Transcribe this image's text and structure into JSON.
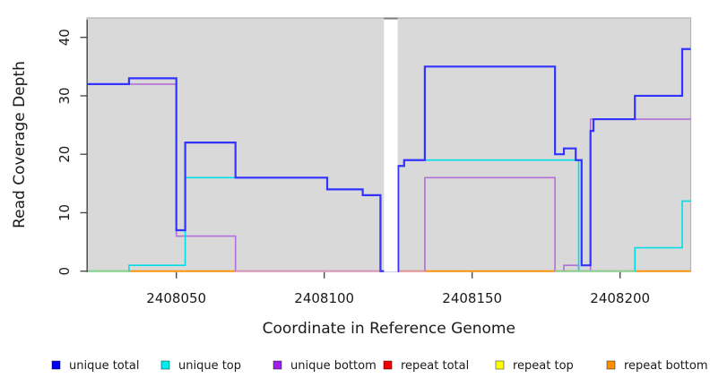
{
  "chart_data": {
    "type": "step-line",
    "title": "",
    "xlabel": "Coordinate in Reference Genome",
    "ylabel": "Read Coverage Depth",
    "xlim": [
      2408020,
      2408224
    ],
    "ylim": [
      0,
      43.4
    ],
    "grid": "off",
    "panel_background": "#d9d9d9",
    "panel_border_color": "#b3b3b3",
    "axis_color": "#404040",
    "text_color": "#1a1a1a",
    "xticks": [
      {
        "value": 2408050,
        "label": "2408050"
      },
      {
        "value": 2408100,
        "label": "2408100"
      },
      {
        "value": 2408150,
        "label": "2408150"
      },
      {
        "value": 2408200,
        "label": "2408200"
      }
    ],
    "yticks": [
      {
        "value": 0,
        "label": "0"
      },
      {
        "value": 10,
        "label": "10"
      },
      {
        "value": 20,
        "label": "20"
      },
      {
        "value": 30,
        "label": "30"
      },
      {
        "value": 40,
        "label": "40"
      }
    ],
    "no_data_gap": {
      "x0": 2408120.2,
      "x1": 2408124.8,
      "fill": "#ffffff",
      "cap_color": "#7d7d7d"
    },
    "top_series": "unique total",
    "series": [
      {
        "name": "repeat total",
        "color": "#e02020",
        "width": 1.5,
        "steps": [
          [
            2408020,
            0
          ]
        ]
      },
      {
        "name": "repeat top",
        "color": "#ffff00",
        "width": 1.5,
        "steps": [
          [
            2408020,
            0
          ]
        ]
      },
      {
        "name": "repeat bottom",
        "color": "#ff9100",
        "width": 1.9,
        "steps": [
          [
            2408020,
            0
          ]
        ]
      },
      {
        "name": "unique bottom",
        "color": "#b36fd9",
        "width": 1.6,
        "steps": [
          [
            2408020,
            32
          ],
          [
            2408050,
            6
          ],
          [
            2408070,
            0
          ],
          [
            2408134,
            16
          ],
          [
            2408178,
            0
          ],
          [
            2408181,
            1
          ],
          [
            2408186,
            0
          ],
          [
            2408190,
            26
          ]
        ]
      },
      {
        "name": "unique top",
        "color": "#00dfe6",
        "width": 1.6,
        "steps": [
          [
            2408020,
            0
          ],
          [
            2408034,
            1
          ],
          [
            2408053,
            16
          ],
          [
            2408101,
            14
          ],
          [
            2408113,
            13
          ],
          [
            2408119,
            0
          ],
          [
            2408125,
            18
          ],
          [
            2408127,
            19
          ],
          [
            2408186,
            0
          ],
          [
            2408205,
            4
          ],
          [
            2408221,
            12
          ]
        ]
      },
      {
        "name": "unique total",
        "color": "#3333ff",
        "width": 2.2,
        "steps": [
          [
            2408020,
            32
          ],
          [
            2408034,
            33
          ],
          [
            2408050,
            7
          ],
          [
            2408053,
            22
          ],
          [
            2408070,
            16
          ],
          [
            2408101,
            14
          ],
          [
            2408113,
            13
          ],
          [
            2408119,
            0
          ],
          [
            2408125,
            18
          ],
          [
            2408127,
            19
          ],
          [
            2408134,
            35
          ],
          [
            2408178,
            20
          ],
          [
            2408181,
            21
          ],
          [
            2408185,
            19
          ],
          [
            2408187,
            1
          ],
          [
            2408190,
            24
          ],
          [
            2408191,
            26
          ],
          [
            2408205,
            30
          ],
          [
            2408221,
            38
          ]
        ]
      }
    ],
    "baseline_overlays": [
      {
        "x0": 2408020,
        "x1": 2408033.8,
        "color": "#7fd898"
      },
      {
        "x0": 2408070,
        "x1": 2408120.2,
        "color": "#d79ac6"
      },
      {
        "x0": 2408124.8,
        "x1": 2408134,
        "color": "#de96a8"
      },
      {
        "x0": 2408178,
        "x1": 2408205,
        "color": "#86d39a"
      }
    ],
    "legend": {
      "position": "bottom",
      "items": [
        {
          "label": "unique total",
          "color": "#0000ee"
        },
        {
          "label": "unique top",
          "color": "#00eeee"
        },
        {
          "label": "unique bottom",
          "color": "#a020f0"
        },
        {
          "label": "repeat total",
          "color": "#ee0000"
        },
        {
          "label": "repeat top",
          "color": "#ffff00"
        },
        {
          "label": "repeat bottom",
          "color": "#ff9100"
        }
      ]
    }
  }
}
